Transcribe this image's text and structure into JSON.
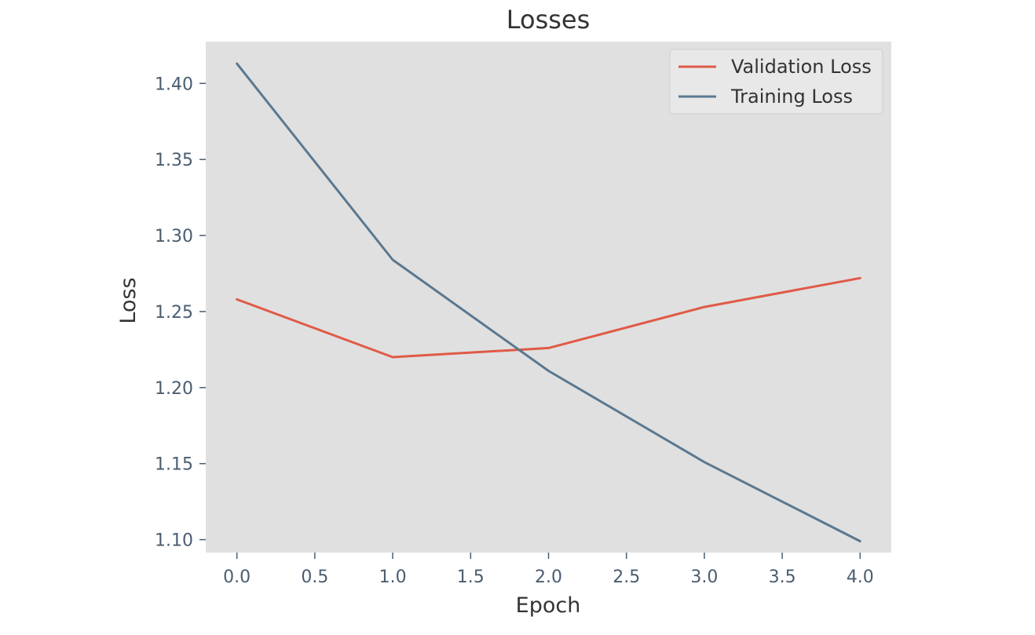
{
  "chart_data": {
    "type": "line",
    "title": "Losses",
    "xlabel": "Epoch",
    "ylabel": "Loss",
    "x": [
      0,
      1,
      2,
      3,
      4
    ],
    "xlim": [
      -0.2,
      4.2
    ],
    "ylim": [
      1.0915,
      1.4275
    ],
    "xticks": [
      0.0,
      0.5,
      1.0,
      1.5,
      2.0,
      2.5,
      3.0,
      3.5,
      4.0
    ],
    "xtick_labels": [
      "0.0",
      "0.5",
      "1.0",
      "1.5",
      "2.0",
      "2.5",
      "3.0",
      "3.5",
      "4.0"
    ],
    "yticks": [
      1.1,
      1.15,
      1.2,
      1.25,
      1.3,
      1.35,
      1.4
    ],
    "ytick_labels": [
      "1.10",
      "1.15",
      "1.20",
      "1.25",
      "1.30",
      "1.35",
      "1.40"
    ],
    "grid": false,
    "legend_position": "top-right",
    "series": [
      {
        "name": "Validation Loss",
        "color": "#e05a47",
        "values": [
          1.258,
          1.22,
          1.226,
          1.253,
          1.272
        ]
      },
      {
        "name": "Training Loss",
        "color": "#5a7890",
        "values": [
          1.413,
          1.284,
          1.211,
          1.151,
          1.099
        ]
      }
    ],
    "colors": {
      "plot_background": "#e0e0e0",
      "text": "#333333",
      "tick_text": "#4a5d70",
      "tick_mark": "#4a5d70"
    }
  }
}
